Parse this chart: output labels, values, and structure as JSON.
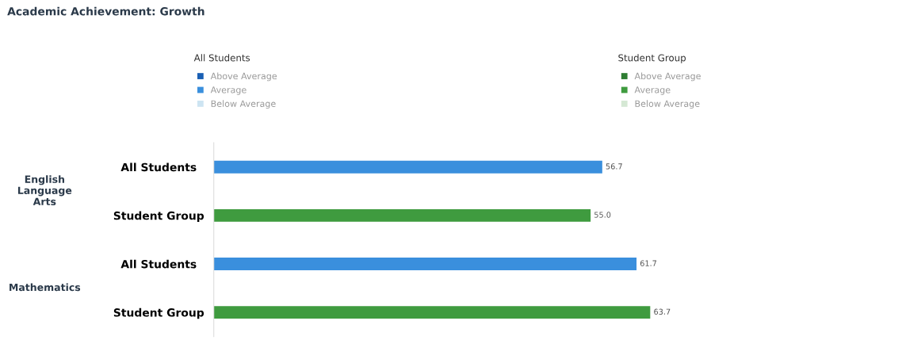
{
  "chart_data": {
    "type": "bar",
    "orientation": "horizontal",
    "title": "Academic Achievement: Growth",
    "categories": [
      "All Students",
      "Student Group",
      "All Students",
      "Student Group"
    ],
    "series": [
      {
        "name": "Above Average",
        "color": "#1a5fb4",
        "values": [
          null,
          null,
          null,
          null
        ]
      },
      {
        "name": "Average",
        "color": "#3a8fdd",
        "values": [
          56.7,
          null,
          61.7,
          null
        ],
        "value_labels": [
          "56.7",
          null,
          "61.7",
          null
        ]
      },
      {
        "name": "Below Average",
        "color": "#cde4f2",
        "values": [
          null,
          null,
          null,
          null
        ]
      },
      {
        "name": "Above Average",
        "color": "#2e7d32",
        "values": [
          null,
          null,
          null,
          null
        ]
      },
      {
        "name": "Average",
        "color": "#3f9b3f",
        "values": [
          null,
          55.0,
          null,
          63.7
        ],
        "value_labels": [
          null,
          "55.0",
          null,
          "63.7"
        ]
      },
      {
        "name": "Below Average",
        "color": "#d5e8d4",
        "values": [
          null,
          null,
          null,
          null
        ]
      }
    ],
    "annotations": [
      "All Students",
      "Student Group",
      "English\nLanguage\nArts",
      "Mathematics"
    ],
    "legend": "top",
    "grid": false,
    "tick_labels": "y"
  }
}
